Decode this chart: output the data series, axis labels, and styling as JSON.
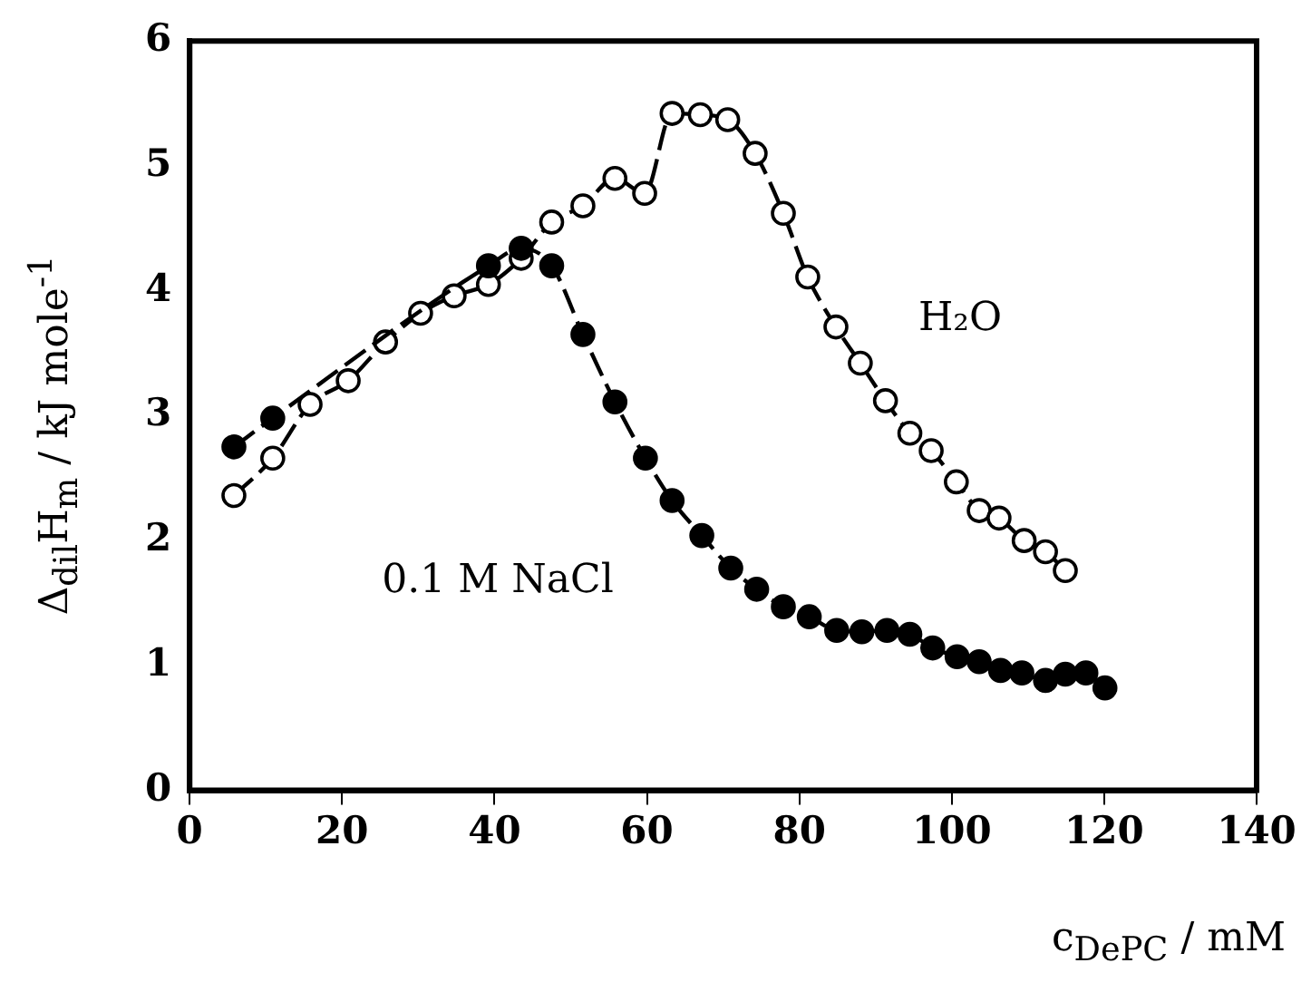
{
  "chart_data": {
    "type": "line",
    "xlabel": "c$_{DePC}$ / mM",
    "ylabel": "Δ$_{dil}$H$_{m}$ / kJ mole$^{-1}$",
    "xlim": [
      0,
      140
    ],
    "xticks": [
      0,
      20,
      40,
      60,
      80,
      100,
      120,
      140
    ],
    "ylim": [
      0,
      6
    ],
    "yticks": [
      0,
      1,
      2,
      3,
      4,
      5,
      6
    ],
    "grid": false,
    "legend": false,
    "marker": "circle",
    "line_style": "dashed",
    "series": [
      {
        "name": "H₂O",
        "color": "#000000",
        "x": [
          5.8,
          10.9,
          15.8,
          20.8,
          25.7,
          30.3,
          34.7,
          39.2,
          43.5,
          47.5,
          51.6,
          55.8,
          59.7,
          63.3,
          67,
          70.6,
          74.2,
          77.9,
          81.1,
          84.8,
          88,
          91.3,
          94.5,
          97.3,
          100.6,
          103.6,
          106.2,
          109.5,
          112.3,
          114.9
        ],
        "values": [
          2.36,
          2.66,
          3.09,
          3.28,
          3.59,
          3.82,
          3.96,
          4.05,
          4.26,
          4.55,
          4.68,
          4.9,
          4.78,
          5.42,
          5.41,
          5.37,
          5.1,
          4.62,
          4.11,
          3.71,
          3.42,
          3.12,
          2.86,
          2.72,
          2.47,
          2.24,
          2.18,
          2.0,
          1.91,
          1.76
        ]
      },
      {
        "name": "0.1 M NaCl",
        "color": "#000000",
        "x": [
          5.8,
          10.9,
          39.2,
          43.5,
          47.5,
          51.6,
          55.8,
          59.8,
          63.3,
          67.2,
          71,
          74.4,
          77.9,
          81.3,
          84.9,
          88.2,
          91.5,
          94.5,
          97.5,
          100.7,
          103.6,
          106.4,
          109.2,
          112.3,
          114.9,
          117.6,
          120.1
        ],
        "values": [
          2.75,
          2.98,
          4.2,
          4.34,
          4.2,
          3.65,
          3.11,
          2.66,
          2.32,
          2.04,
          1.78,
          1.61,
          1.47,
          1.39,
          1.28,
          1.27,
          1.28,
          1.25,
          1.14,
          1.07,
          1.03,
          0.96,
          0.94,
          0.88,
          0.93,
          0.94,
          0.82
        ]
      }
    ]
  }
}
